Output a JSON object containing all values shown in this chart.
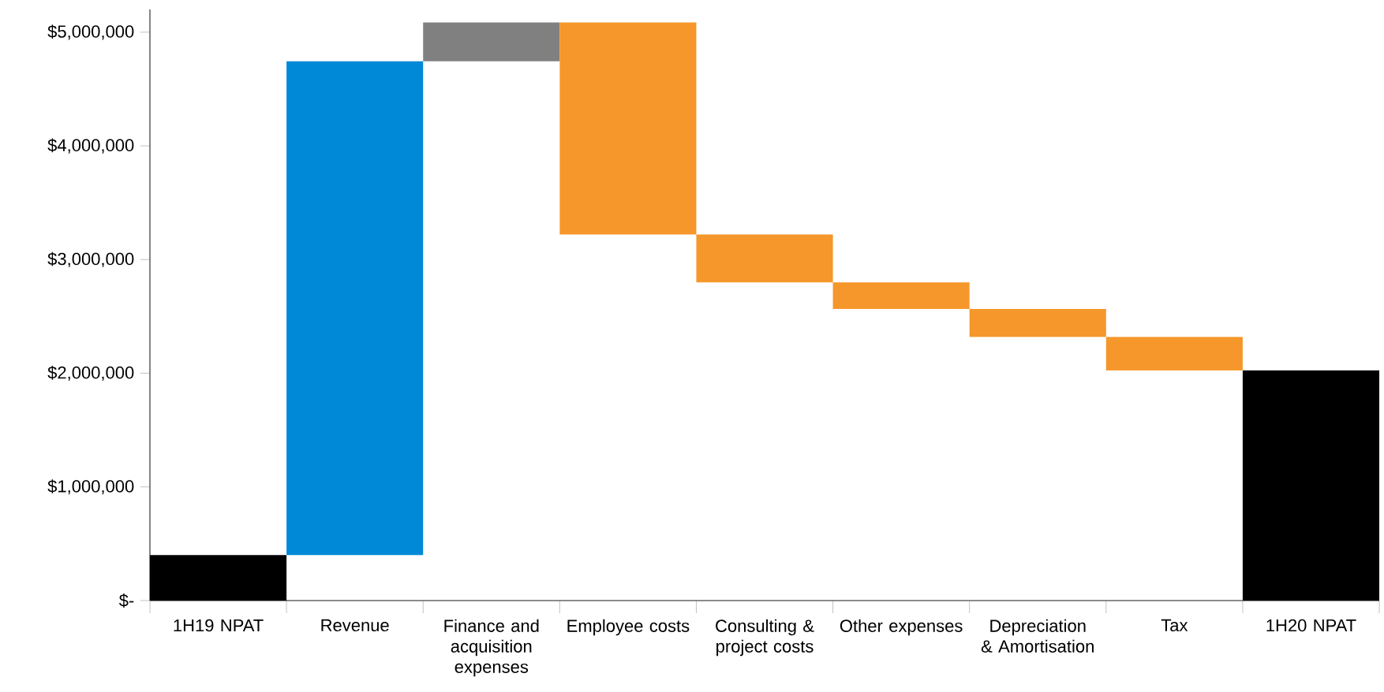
{
  "chart_data": {
    "type": "bar",
    "categories": [
      "1H19 NPAT",
      "Revenue",
      "Finance and acquisition expenses",
      "Employee costs",
      "Consulting & project costs",
      "Other expenses",
      "Depreciation & Amortisation",
      "Tax",
      "1H20 NPAT"
    ],
    "base": [
      0,
      400000,
      4745000,
      5085000,
      3220000,
      2800000,
      2565000,
      2320000,
      0
    ],
    "values": [
      400000,
      4345000,
      340000,
      -1865000,
      -420000,
      -235000,
      -245000,
      -295000,
      2025000
    ],
    "colors": [
      "#000000",
      "#0089d6",
      "#808080",
      "#f5972a",
      "#f5972a",
      "#f5972a",
      "#f5972a",
      "#f5972a",
      "#000000"
    ],
    "ylim": [
      0,
      5200000
    ],
    "yticks": [
      {
        "value": 0,
        "label": "$-"
      },
      {
        "value": 1000000,
        "label": "$1,000,000"
      },
      {
        "value": 2000000,
        "label": "$2,000,000"
      },
      {
        "value": 3000000,
        "label": "$3,000,000"
      },
      {
        "value": 4000000,
        "label": "$4,000,000"
      },
      {
        "value": 5000000,
        "label": "$5,000,000"
      }
    ]
  }
}
